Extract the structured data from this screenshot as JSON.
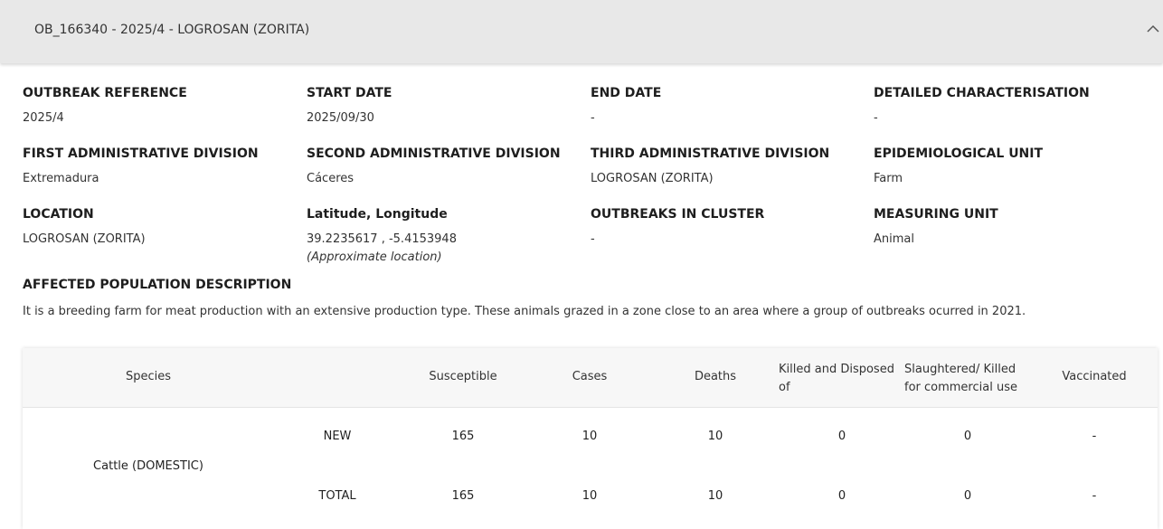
{
  "header": {
    "title": "OB_166340 - 2025/4 - LOGROSAN (ZORITA)"
  },
  "fields": [
    {
      "label": "OUTBREAK REFERENCE",
      "value": "2025/4"
    },
    {
      "label": "START DATE",
      "value": "2025/09/30"
    },
    {
      "label": "END DATE",
      "value": "-"
    },
    {
      "label": "DETAILED CHARACTERISATION",
      "value": "-"
    },
    {
      "label": "FIRST ADMINISTRATIVE DIVISION",
      "value": "Extremadura"
    },
    {
      "label": "SECOND ADMINISTRATIVE DIVISION",
      "value": "Cáceres"
    },
    {
      "label": "THIRD ADMINISTRATIVE DIVISION",
      "value": "LOGROSAN (ZORITA)"
    },
    {
      "label": "EPIDEMIOLOGICAL UNIT",
      "value": "Farm"
    },
    {
      "label": "LOCATION",
      "value": "LOGROSAN (ZORITA)"
    },
    {
      "label": "Latitude, Longitude",
      "value": "39.2235617 , -5.4153948",
      "note": "(Approximate location)"
    },
    {
      "label": "OUTBREAKS IN CLUSTER",
      "value": "-"
    },
    {
      "label": "MEASURING UNIT",
      "value": "Animal"
    }
  ],
  "population": {
    "label": "AFFECTED POPULATION DESCRIPTION",
    "text": "It is a breeding farm for meat production with an extensive production type. These animals grazed in a zone close to an area where a group of outbreaks ocurred in 2021."
  },
  "table": {
    "columns": [
      "Species",
      "Susceptible",
      "Cases",
      "Deaths",
      "Killed and Disposed of",
      "Slaughtered/ Killed for commercial use",
      "Vaccinated"
    ],
    "species": "Cattle (DOMESTIC)",
    "rows": [
      [
        "NEW",
        "165",
        "10",
        "10",
        "0",
        "0",
        "-"
      ],
      [
        "TOTAL",
        "165",
        "10",
        "10",
        "0",
        "0",
        "-"
      ]
    ]
  }
}
